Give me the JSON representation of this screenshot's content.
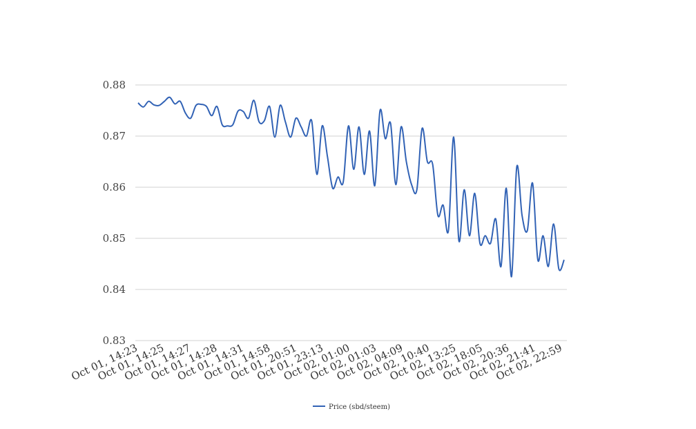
{
  "chart_data": {
    "type": "line",
    "title": "",
    "xlabel": "",
    "ylabel": "",
    "ylim": [
      0.83,
      0.88
    ],
    "yticks": [
      "0.83",
      "0.84",
      "0.85",
      "0.86",
      "0.87",
      "0.88"
    ],
    "grid": true,
    "legend_position": "bottom",
    "line_color": "#3162b5",
    "x_tick_labels": [
      "Oct 01, 14:23",
      "Oct 01, 14:25",
      "Oct 01, 14:27",
      "Oct 01, 14:28",
      "Oct 01, 14:31",
      "Oct 01, 14:58",
      "Oct 01, 20:51",
      "Oct 01, 23:13",
      "Oct 02, 01:00",
      "Oct 02, 01:03",
      "Oct 02, 04:09",
      "Oct 02, 10:40",
      "Oct 02, 13:25",
      "Oct 02, 18:05",
      "Oct 02, 20:36",
      "Oct 02, 21:41",
      "Oct 02, 22:59"
    ],
    "series": [
      {
        "name": "Price (sbd/steem)",
        "values": [
          0.8765,
          0.8757,
          0.8768,
          0.8761,
          0.876,
          0.8768,
          0.8776,
          0.8763,
          0.8768,
          0.8745,
          0.8735,
          0.876,
          0.8762,
          0.8758,
          0.874,
          0.8758,
          0.8722,
          0.872,
          0.8722,
          0.8749,
          0.8748,
          0.8735,
          0.877,
          0.8728,
          0.873,
          0.8758,
          0.8698,
          0.876,
          0.8728,
          0.8698,
          0.8735,
          0.8718,
          0.87,
          0.873,
          0.8625,
          0.872,
          0.866,
          0.8598,
          0.862,
          0.861,
          0.872,
          0.8635,
          0.8718,
          0.8625,
          0.871,
          0.8603,
          0.875,
          0.8695,
          0.8725,
          0.8605,
          0.8718,
          0.865,
          0.8605,
          0.8595,
          0.8715,
          0.865,
          0.8645,
          0.8545,
          0.8565,
          0.8515,
          0.8698,
          0.8495,
          0.8595,
          0.8505,
          0.8588,
          0.849,
          0.8505,
          0.849,
          0.8538,
          0.8445,
          0.8598,
          0.8425,
          0.864,
          0.8545,
          0.8515,
          0.8608,
          0.8458,
          0.8505,
          0.8445,
          0.8528,
          0.844,
          0.8458
        ]
      }
    ]
  }
}
